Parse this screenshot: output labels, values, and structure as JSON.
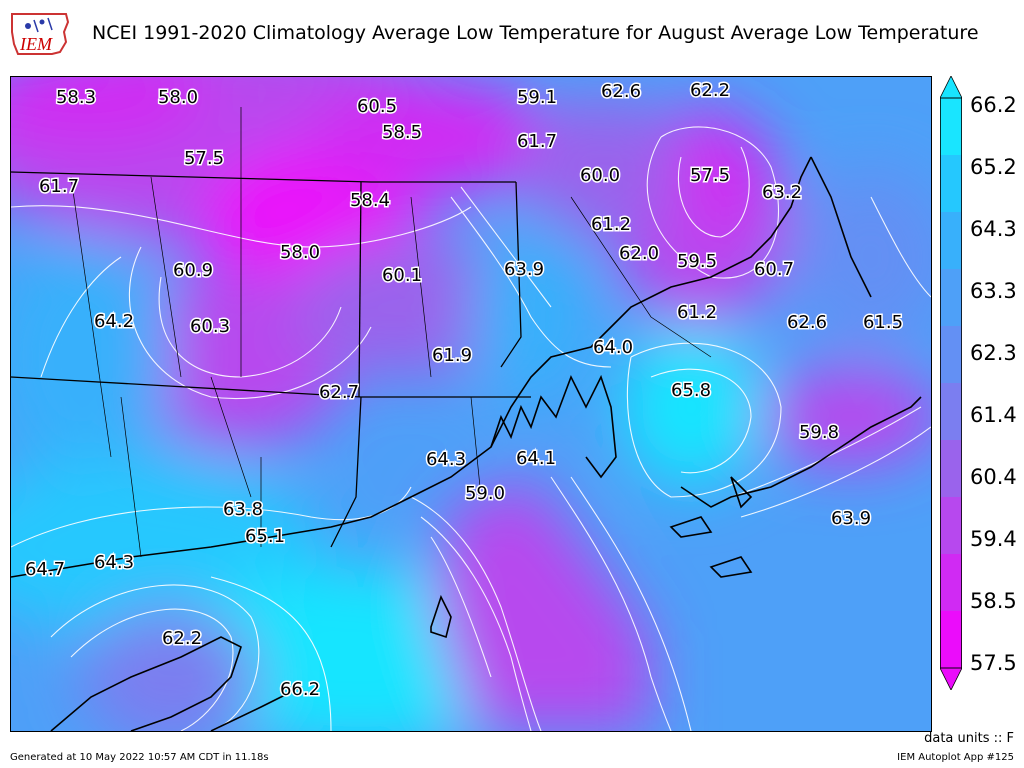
{
  "header": {
    "title": "NCEI 1991-2020 Climatology Average Low Temperature for August Average Low Temperature",
    "logo_text": "IEM"
  },
  "colorbar": {
    "ticks": [
      "66.2",
      "65.2",
      "64.3",
      "63.3",
      "62.3",
      "61.4",
      "60.4",
      "59.4",
      "58.5",
      "57.5"
    ],
    "colors": [
      "#19e5ff",
      "#25c8fe",
      "#38b0fb",
      "#4ea0f8",
      "#6390f4",
      "#7b7ef0",
      "#9a63ec",
      "#b748ee",
      "#d02af3",
      "#eb0cfb"
    ]
  },
  "map": {
    "labels": [
      {
        "v": "58.3"
      },
      {
        "v": "58.0"
      },
      {
        "v": "60.5"
      },
      {
        "v": "59.1"
      },
      {
        "v": "62.6"
      },
      {
        "v": "62.2"
      },
      {
        "v": "58.5"
      },
      {
        "v": "61.7"
      },
      {
        "v": "57.5"
      },
      {
        "v": "60.0"
      },
      {
        "v": "57.5"
      },
      {
        "v": "61.7"
      },
      {
        "v": "58.4"
      },
      {
        "v": "63.2"
      },
      {
        "v": "61.2"
      },
      {
        "v": "58.0"
      },
      {
        "v": "62.0"
      },
      {
        "v": "60.9"
      },
      {
        "v": "59.5"
      },
      {
        "v": "63.9"
      },
      {
        "v": "60.1"
      },
      {
        "v": "60.7"
      },
      {
        "v": "64.2"
      },
      {
        "v": "60.3"
      },
      {
        "v": "61.2"
      },
      {
        "v": "62.6"
      },
      {
        "v": "61.5"
      },
      {
        "v": "64.0"
      },
      {
        "v": "61.9"
      },
      {
        "v": "62.7"
      },
      {
        "v": "65.8"
      },
      {
        "v": "59.8"
      },
      {
        "v": "64.3"
      },
      {
        "v": "64.1"
      },
      {
        "v": "59.0"
      },
      {
        "v": "63.8"
      },
      {
        "v": "63.9"
      },
      {
        "v": "65.1"
      },
      {
        "v": "64.7"
      },
      {
        "v": "64.3"
      },
      {
        "v": "62.2"
      },
      {
        "v": "66.2"
      }
    ]
  },
  "footer": {
    "generated": "Generated at 10 May 2022 10:57 AM CDT in 11.18s",
    "app": "IEM Autoplot App #125",
    "units": "data units :: F"
  }
}
